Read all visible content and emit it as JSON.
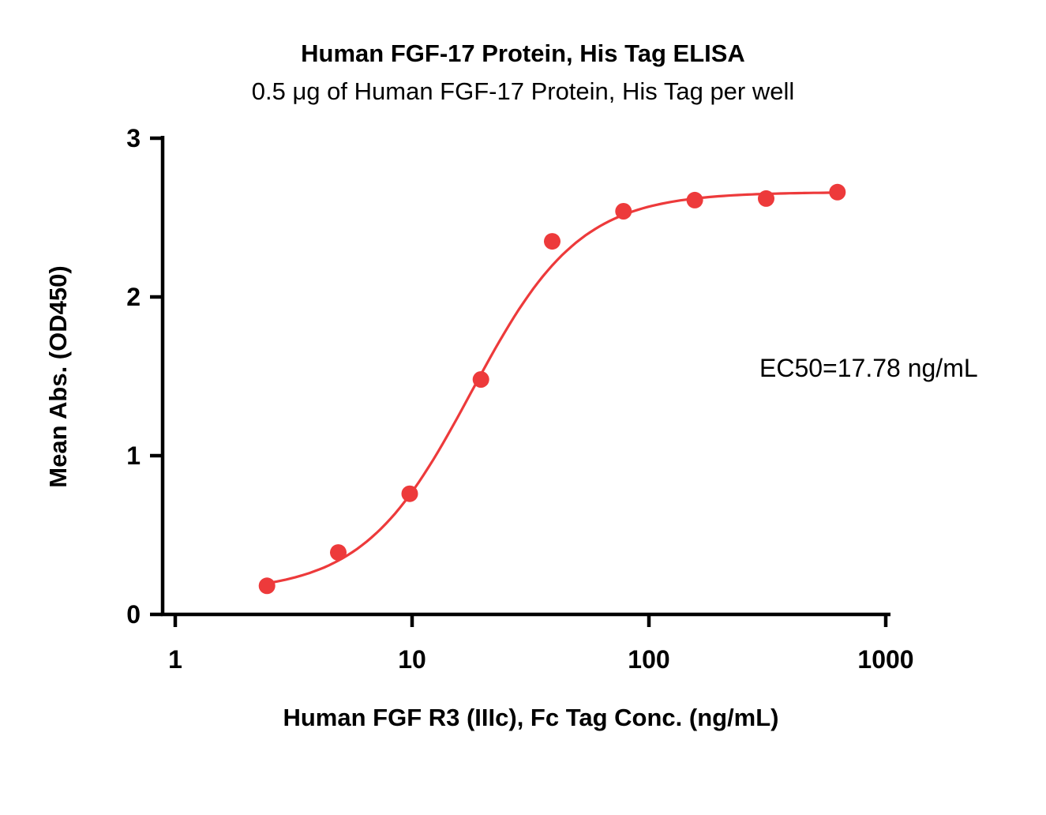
{
  "chart_data": {
    "type": "scatter",
    "title": "Human FGF-17 Protein, His Tag ELISA",
    "subtitle": "0.5 μg of Human FGF-17 Protein, His Tag per well",
    "xlabel": "Human FGF R3 (IIIc), Fc Tag Conc. (ng/mL)",
    "ylabel": "Mean Abs. (OD450)",
    "x_scale": "log10",
    "xlim": [
      1,
      1000
    ],
    "ylim": [
      0,
      3
    ],
    "xticks": [
      1,
      10,
      100,
      1000
    ],
    "yticks": [
      0,
      1,
      2,
      3
    ],
    "grid": false,
    "legend": "none",
    "color": "#ed3a3b",
    "points": {
      "x": [
        2.44,
        4.88,
        9.77,
        19.53,
        39.06,
        78.13,
        156.25,
        312.5,
        625
      ],
      "y": [
        0.18,
        0.39,
        0.76,
        1.48,
        2.35,
        2.54,
        2.61,
        2.62,
        2.66
      ]
    },
    "fit": {
      "model": "4PL",
      "ec50": 17.78,
      "hill": 1.9,
      "top": 2.66,
      "bottom": 0.14
    },
    "ec50_text": "EC50=17.78 ng/mL"
  }
}
